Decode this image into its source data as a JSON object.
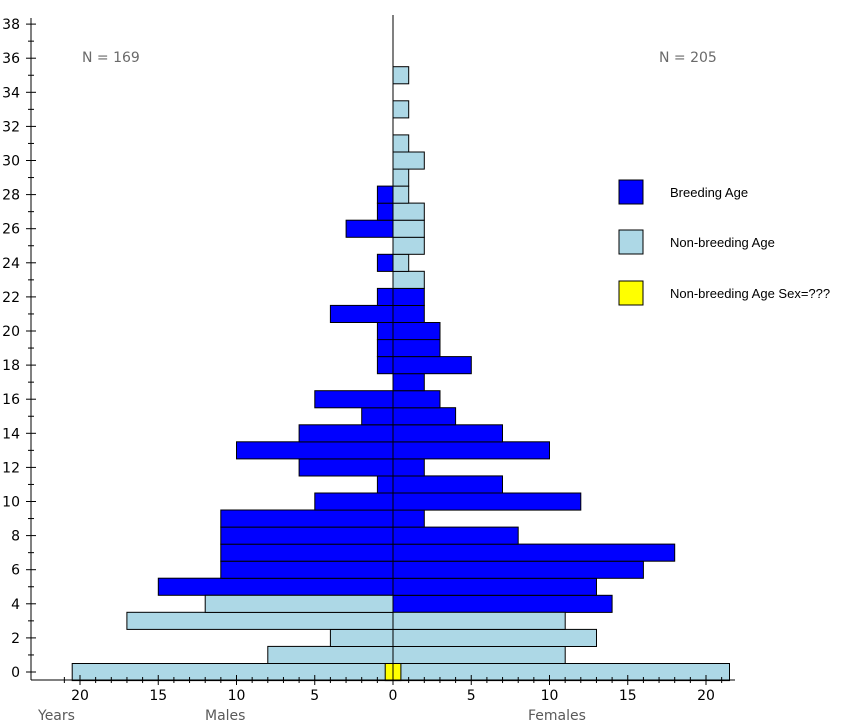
{
  "chart_data": {
    "type": "bar",
    "orientation": "horizontal-population-pyramid",
    "x_title_left": "Years",
    "x_title_males": "Males",
    "x_title_females": "Females",
    "males_count_label": "N = 169",
    "females_count_label": "N = 205",
    "y_range": [
      0,
      38
    ],
    "y_ticks": [
      "0",
      "2",
      "4",
      "6",
      "8",
      "10",
      "12",
      "14",
      "16",
      "18",
      "20",
      "22",
      "24",
      "26",
      "28",
      "30",
      "32",
      "34",
      "36",
      "38"
    ],
    "x_range_males": [
      21,
      0
    ],
    "x_range_females": [
      0,
      21
    ],
    "x_ticks_males": [
      "20",
      "15",
      "10",
      "5",
      "0"
    ],
    "x_ticks_females": [
      "5",
      "10",
      "15",
      "20"
    ],
    "legend": [
      {
        "label": "Breeding Age",
        "color": "#0000ff"
      },
      {
        "label": "Non-breeding Age",
        "color": "#add8e6"
      },
      {
        "label": "Non-breeding Age Sex=???",
        "color": "#ffff00"
      }
    ],
    "colors": {
      "breeding": "#0000ff",
      "non_breeding": "#add8e6",
      "unknown_sex": "#ffff00"
    },
    "ages": [
      0,
      1,
      2,
      3,
      4,
      5,
      6,
      7,
      8,
      9,
      10,
      11,
      12,
      13,
      14,
      15,
      16,
      17,
      18,
      19,
      20,
      21,
      22,
      23,
      24,
      25,
      26,
      27,
      28,
      29,
      30,
      31,
      32,
      33,
      34,
      35
    ],
    "series": [
      {
        "name": "Males Breeding Age",
        "values": [
          0,
          0,
          0,
          0,
          0,
          15,
          11,
          11,
          11,
          11,
          5,
          1,
          6,
          10,
          6,
          2,
          5,
          0,
          1,
          1,
          1,
          4,
          1,
          0,
          1,
          0,
          3,
          1,
          1,
          0,
          0,
          0,
          0,
          0,
          0,
          0
        ]
      },
      {
        "name": "Males Non-breeding Age",
        "values": [
          20.5,
          8,
          4,
          17,
          12,
          0,
          0,
          0,
          0,
          0,
          0,
          0,
          0,
          0,
          0,
          0,
          0,
          0,
          0,
          0,
          0,
          0,
          0,
          0,
          0,
          0,
          0,
          0,
          0,
          0,
          0,
          0,
          0,
          0,
          0,
          0
        ]
      },
      {
        "name": "Females Breeding Age",
        "values": [
          0,
          0,
          0,
          0,
          14,
          13,
          16,
          18,
          8,
          2,
          12,
          7,
          2,
          10,
          7,
          4,
          3,
          2,
          5,
          3,
          3,
          2,
          2,
          0,
          0,
          0,
          0,
          0,
          0,
          0,
          0,
          0,
          0,
          0,
          0,
          0
        ]
      },
      {
        "name": "Females Non-breeding Age",
        "values": [
          21.5,
          11,
          13,
          11,
          0,
          0,
          0,
          0,
          0,
          0,
          0,
          0,
          0,
          0,
          0,
          0,
          0,
          0,
          0,
          0,
          0,
          0,
          0,
          2,
          1,
          2,
          2,
          2,
          1,
          1,
          2,
          1,
          0,
          1,
          0,
          1
        ]
      },
      {
        "name": "Non-breeding Age Sex=???",
        "values": [
          1,
          0,
          0,
          0,
          0,
          0,
          0,
          0,
          0,
          0,
          0,
          0,
          0,
          0,
          0,
          0,
          0,
          0,
          0,
          0,
          0,
          0,
          0,
          0,
          0,
          0,
          0,
          0,
          0,
          0,
          0,
          0,
          0,
          0,
          0,
          0
        ]
      }
    ]
  }
}
